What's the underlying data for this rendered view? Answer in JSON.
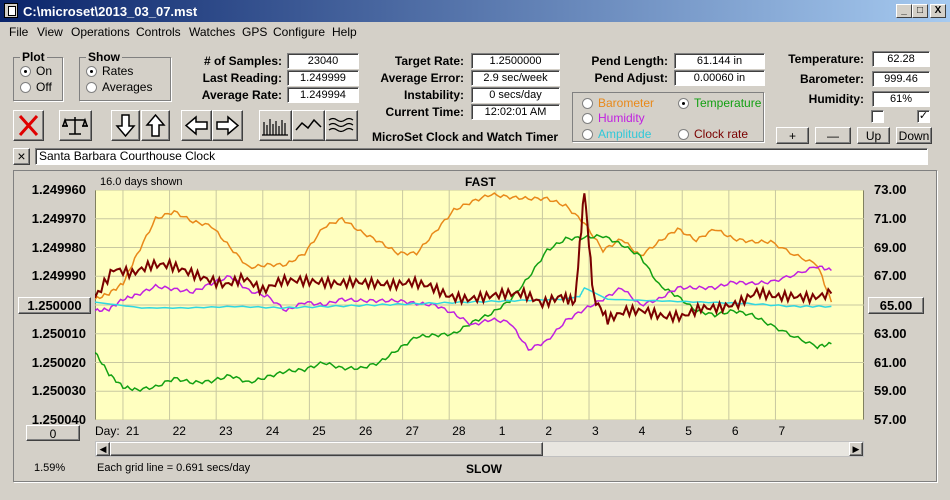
{
  "window": {
    "title": "C:\\microset\\2013_03_07.mst",
    "min": "_",
    "max": "□",
    "close": "X"
  },
  "menu": [
    "File",
    "View",
    "Operations",
    "Controls",
    "Watches",
    "GPS",
    "Configure",
    "Help"
  ],
  "plot": {
    "legend": "Plot",
    "on": "On",
    "off": "Off",
    "selected": "On"
  },
  "show": {
    "legend": "Show",
    "rates": "Rates",
    "averages": "Averages",
    "selected": "Rates"
  },
  "stats": {
    "samples_label": "# of Samples:",
    "samples": "23040",
    "last_label": "Last Reading:",
    "last": "1.249999",
    "avg_label": "Average Rate:",
    "avg": "1.249994",
    "target_label": "Target Rate:",
    "target": "1.2500000",
    "avgerr_label": "Average Error:",
    "avgerr": "2.9 sec/week",
    "instab_label": "Instability:",
    "instab": "0 secs/day",
    "time_label": "Current Time:",
    "time": "12:02:01 AM",
    "pendlen_label": "Pend Length:",
    "pendlen": "61.144 in",
    "pendadj_label": "Pend Adjust:",
    "pendadj": "0.00060 in",
    "temp_label": "Temperature:",
    "temp": "62.28",
    "baro_label": "Barometer:",
    "baro": "999.46",
    "hum_label": "Humidity:",
    "hum": "61%"
  },
  "app_label": "MicroSet Clock and Watch Timer",
  "sensors": {
    "barometer": "Barometer",
    "temperature": "Temperature",
    "humidity": "Humidity",
    "amplitude": "Amplitude",
    "clockrate": "Clock rate",
    "selected": "Temperature"
  },
  "colors": {
    "barometer": "#e8891a",
    "temperature": "#12a012",
    "humidity": "#c020e0",
    "amplitude": "#30d8e0",
    "clockrate": "#7a0000",
    "plot_bg": "#ffffc0"
  },
  "buttons": {
    "plus": "+",
    "minus": "—",
    "up": "Up",
    "down": "Down",
    "clear": "×"
  },
  "checkboxes": {
    "left": false,
    "right": true
  },
  "clock_name": "Santa Barbara Courthouse Clock",
  "chart_data": {
    "type": "line",
    "top_label": "FAST",
    "bottom_label": "SLOW",
    "days_shown": "16.0 days shown",
    "grid_note": "Each grid line = 0.691 secs/day",
    "zoom": "1.59%",
    "x_label": "Day:",
    "x_ticks": [
      "21",
      "22",
      "23",
      "24",
      "25",
      "26",
      "27",
      "28",
      "1",
      "2",
      "3",
      "4",
      "5",
      "6",
      "7"
    ],
    "y_ticks": [
      "1.249960",
      "1.249970",
      "1.249980",
      "1.249990",
      "1.250000",
      "1.250010",
      "1.250020",
      "1.250030",
      "1.250040"
    ],
    "y_ticks_right": [
      "73.00",
      "71.00",
      "69.00",
      "67.00",
      "65.00",
      "63.00",
      "61.00",
      "59.00",
      "57.00"
    ],
    "center_left": "1.250000",
    "center_right": "65.00",
    "offset": "0",
    "ylim": [
      1.24996,
      1.25004
    ],
    "ylim_right": [
      57,
      73
    ],
    "series": [
      {
        "name": "Barometer",
        "color": "#e8891a",
        "x": [
          0,
          0.3,
          0.6,
          0.9,
          1.3,
          1.7,
          2.1,
          2.5,
          2.9,
          3.3,
          3.7,
          4.1,
          4.5,
          4.9,
          5.3,
          5.7,
          6.1,
          6.5,
          6.9,
          7.3,
          7.7,
          8.1,
          8.5,
          8.9,
          9.3,
          9.7,
          10.1,
          10.5,
          10.9,
          11.3,
          11.7,
          12.1,
          12.5,
          12.9,
          13.3,
          13.7,
          14.1,
          14.5,
          15,
          15.5,
          15.8
        ],
        "y": [
          65.4,
          65.8,
          66.5,
          68.5,
          71.0,
          71.5,
          70.8,
          70.5,
          69.0,
          67.6,
          67.8,
          67.8,
          68.6,
          70.4,
          71.0,
          70.1,
          69.4,
          68.6,
          68.6,
          70.1,
          71.6,
          72.2,
          72.7,
          72.5,
          72.4,
          72.4,
          71.9,
          70.7,
          68.8,
          69.6,
          68.4,
          69.4,
          70.3,
          69.5,
          70.3,
          69.6,
          69.4,
          69.4,
          68.5,
          67.8,
          65.2
        ]
      },
      {
        "name": "Temperature",
        "color": "#12a012",
        "x": [
          0,
          0.3,
          0.6,
          0.9,
          1.3,
          1.7,
          2.1,
          2.5,
          2.9,
          3.3,
          3.7,
          4.1,
          4.5,
          4.9,
          5.3,
          5.7,
          6.1,
          6.5,
          6.9,
          7.3,
          7.7,
          8.1,
          8.5,
          8.9,
          9.3,
          9.7,
          10.1,
          10.5,
          10.9,
          11.3,
          11.7,
          12.1,
          12.5,
          12.9,
          13.3,
          13.7,
          14.1,
          14.5,
          15,
          15.5,
          15.8
        ],
        "y": [
          61.7,
          60.2,
          59.3,
          59.1,
          59.3,
          59.9,
          59.6,
          59.7,
          60.1,
          59.6,
          60.0,
          60.4,
          60.5,
          61.0,
          60.6,
          60.6,
          61.0,
          61.9,
          62.8,
          62.9,
          63.0,
          63.8,
          64.4,
          65.3,
          66.9,
          68.8,
          69.6,
          69.7,
          69.8,
          69.2,
          68.4,
          66.4,
          65.6,
          64.6,
          64.3,
          64.6,
          64.3,
          63.6,
          62.8,
          62.1,
          62.3
        ]
      },
      {
        "name": "Humidity",
        "color": "#c020e0",
        "x": [
          0,
          0.3,
          0.6,
          0.9,
          1.3,
          1.7,
          2.1,
          2.5,
          2.9,
          3.3,
          3.7,
          4.1,
          4.5,
          4.9,
          5.3,
          5.7,
          6.1,
          6.5,
          6.9,
          7.3,
          7.7,
          8.1,
          8.5,
          8.9,
          9.3,
          9.7,
          10.1,
          10.5,
          10.9,
          11.3,
          11.7,
          12.1,
          12.5,
          12.9,
          13.3,
          13.7,
          14.1,
          14.5,
          15,
          15.5,
          15.8
        ],
        "y": [
          64.6,
          64.7,
          65.4,
          65.7,
          66.3,
          66.1,
          65.9,
          66.5,
          67.0,
          66.0,
          65.6,
          64.6,
          65.2,
          65.0,
          65.4,
          65.3,
          65.3,
          65.3,
          65.1,
          65.0,
          64.4,
          63.6,
          64.0,
          63.8,
          61.9,
          62.5,
          63.9,
          64.7,
          65.4,
          66.2,
          65.0,
          65.4,
          66.2,
          66.2,
          66.2,
          66.6,
          66.5,
          66.6,
          67.1,
          67.7,
          67.4
        ]
      },
      {
        "name": "Amplitude",
        "color": "#30d8e0",
        "x": [
          0,
          1,
          2,
          3,
          4,
          5,
          6,
          7,
          8,
          9,
          10,
          10.4,
          10.5,
          11,
          12,
          13,
          14,
          15,
          15.8
        ],
        "y": [
          65.2,
          64.8,
          64.8,
          64.9,
          64.8,
          64.9,
          65.0,
          65.1,
          65.2,
          65.3,
          65.4,
          65.6,
          66.2,
          65.4,
          65.3,
          65.2,
          65.1,
          64.9,
          64.9
        ]
      },
      {
        "name": "Clock rate",
        "color": "#7a0000",
        "x": [
          0,
          0.4,
          0.8,
          1.2,
          1.6,
          2.0,
          2.4,
          2.8,
          3.2,
          3.6,
          4.0,
          4.4,
          4.8,
          5.2,
          5.6,
          6.0,
          6.4,
          6.8,
          7.2,
          7.6,
          8.0,
          8.4,
          8.8,
          9.2,
          9.6,
          10.0,
          10.3,
          10.5,
          10.7,
          11.0,
          11.4,
          11.8,
          12.2,
          12.6,
          13.0,
          13.4,
          13.8,
          14.2,
          14.6,
          15.0,
          15.4,
          15.8
        ],
        "y": [
          65.5,
          67.5,
          67.2,
          67.8,
          67.8,
          67.3,
          66.8,
          66.4,
          66.9,
          66.0,
          66.7,
          66.7,
          66.6,
          66.5,
          66.6,
          66.5,
          66.4,
          66.6,
          66.3,
          65.6,
          65.4,
          65.6,
          65.8,
          65.8,
          65.1,
          65.6,
          65.2,
          73.0,
          65.5,
          64.0,
          64.6,
          64.6,
          64.2,
          64.2,
          64.8,
          64.8,
          65.1,
          65.9,
          65.6,
          65.6,
          65.5,
          65.8
        ]
      }
    ]
  }
}
